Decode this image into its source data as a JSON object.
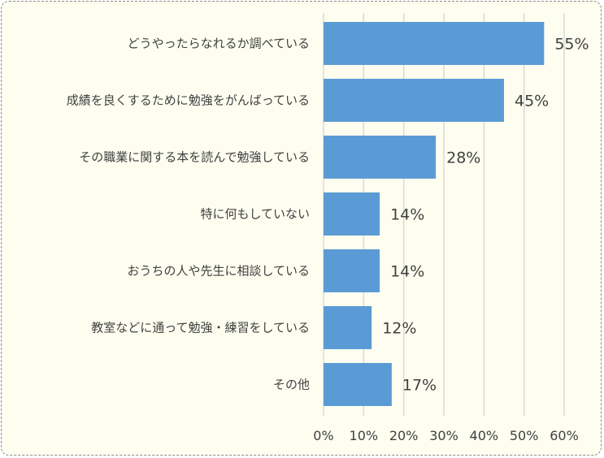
{
  "chart_data": {
    "type": "bar",
    "orientation": "horizontal",
    "categories": [
      "どうやったらなれるか調べている",
      "成績を良くするために勉強をがんばっている",
      "その職業に関する本を読んで勉強している",
      "特に何もしていない",
      "おうちの人や先生に相談している",
      "教室などに通って勉強・練習をしている",
      "その他"
    ],
    "values": [
      55,
      45,
      28,
      14,
      14,
      12,
      17
    ],
    "value_labels": [
      "55%",
      "45%",
      "28%",
      "14%",
      "14%",
      "12%",
      "17%"
    ],
    "xlim": [
      0,
      60
    ],
    "x_ticks": [
      "0%",
      "10%",
      "20%",
      "30%",
      "40%",
      "50%",
      "60%"
    ],
    "grid": "vertical",
    "title": "",
    "xlabel": "",
    "ylabel": "",
    "colors": {
      "bar": "#5b9bd5",
      "grid": "#d9d9d9",
      "background": "#fefef0",
      "text": "#404040"
    }
  }
}
